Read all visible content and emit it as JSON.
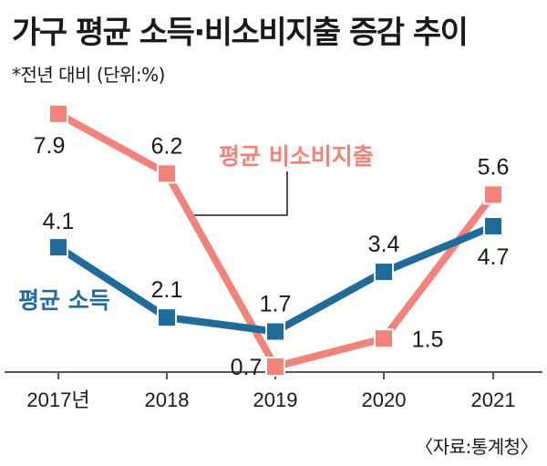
{
  "header": {
    "title": "가구 평균 소득·비소비지출 증감 추이",
    "subtitle": "*전년 대비 (단위:%)"
  },
  "footer": {
    "source": "〈자료:통계청〉"
  },
  "colors": {
    "income": "#1f6b99",
    "nonconsumption": "#f2837b",
    "axis": "#555555",
    "leader": "#1a1a1a"
  },
  "chart_data": {
    "type": "line",
    "categories": [
      "2017년",
      "2018",
      "2019",
      "2020",
      "2021"
    ],
    "series": [
      {
        "name": "평균 소득",
        "values": [
          4.1,
          2.1,
          1.7,
          3.4,
          4.7
        ]
      },
      {
        "name": "평균 비소비지출",
        "values": [
          7.9,
          6.2,
          0.7,
          1.5,
          5.6
        ]
      }
    ],
    "ylim": [
      0,
      8.5
    ],
    "grid": false,
    "legend": "inline labels"
  }
}
